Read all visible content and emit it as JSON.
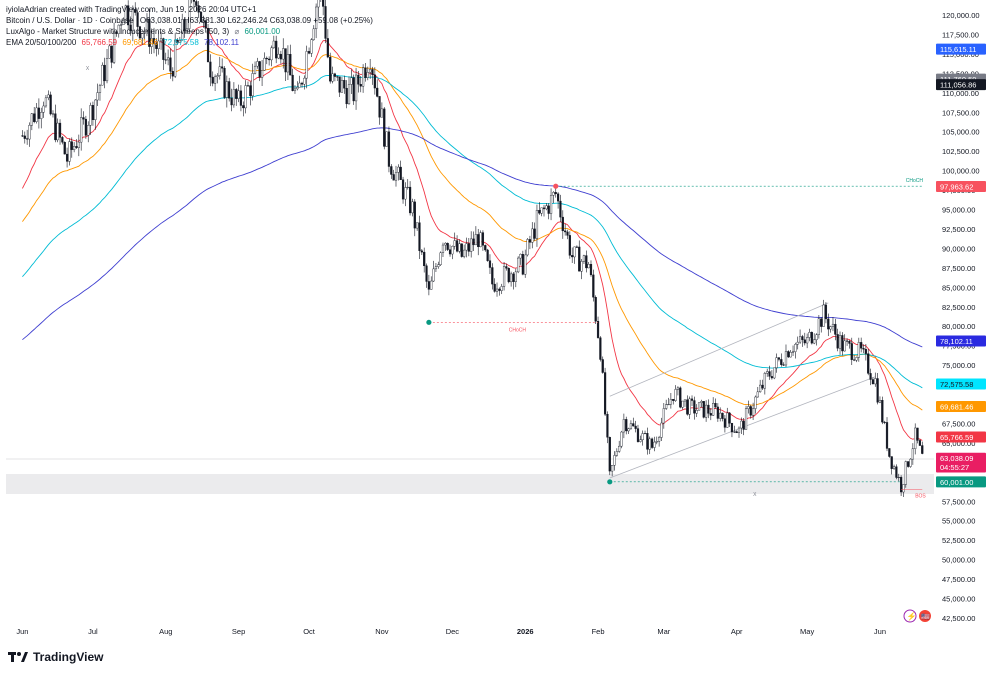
{
  "header": {
    "creator": "iyiolaAdrian created with TradingView.com, Jun 19, 2026 20:04 UTC+1",
    "symbol": "Bitcoin / U.S. Dollar · 1D · Coinbase",
    "ohlc": "O63,038.01  H63,381.30  L62,246.24  C63,038.09  +59.08 (+0.25%)",
    "indicator1": "LuxAlgo - Market Structure with Inducements & Sweeps (50, 3)",
    "indicator1_value": "60,001.00",
    "indicator2": "EMA 20/50/100/200",
    "ema_values": [
      "65,766.59",
      "69,681.46",
      "72,575.58",
      "78,102.11"
    ]
  },
  "colors": {
    "up": "#131722",
    "ema20": "#f23645",
    "ema50": "#ff9800",
    "ema100": "#00bcd4",
    "ema200": "#3f3fd0",
    "level": "#089981",
    "sweep": "#f7525f"
  },
  "footer": {
    "brand": "TradingView"
  },
  "annotations": {
    "choch1": "CHoCH",
    "choch2": "CHoCH",
    "choch_top": "CHoCH",
    "x1": "X",
    "x2": "X",
    "bos": "BOS"
  },
  "chart_data": {
    "type": "candlestick",
    "title": "Bitcoin / U.S. Dollar · 1D · Coinbase",
    "x_ticks": [
      "Jun",
      "Jul",
      "Aug",
      "Sep",
      "Oct",
      "Nov",
      "Dec",
      "2026",
      "Feb",
      "Mar",
      "Apr",
      "May",
      "Jun"
    ],
    "y_ticks": [
      "120,000.00",
      "117,500.00",
      "115,000.00",
      "112,500.00",
      "110,000.00",
      "107,500.00",
      "105,000.00",
      "102,500.00",
      "100,000.00",
      "97,500.00",
      "95,000.00",
      "92,500.00",
      "90,000.00",
      "87,500.00",
      "85,000.00",
      "82,500.00",
      "80,000.00",
      "77,500.00",
      "75,000.00",
      "72,500.00",
      "70,000.00",
      "67,500.00",
      "65,000.00",
      "62,500.00",
      "60,000.00",
      "57,500.00",
      "55,000.00",
      "52,500.00",
      "50,000.00",
      "47,500.00",
      "45,000.00",
      "42,500.00"
    ],
    "ylim": [
      42000,
      121000
    ],
    "close_path": [
      [
        "2025-06-01",
        104500
      ],
      [
        "2025-06-10",
        109500
      ],
      [
        "2025-06-20",
        101500
      ],
      [
        "2025-06-30",
        107500
      ],
      [
        "2025-07-10",
        116500
      ],
      [
        "2025-07-14",
        121000
      ],
      [
        "2025-07-25",
        117500
      ],
      [
        "2025-08-03",
        113000
      ],
      [
        "2025-08-14",
        123000
      ],
      [
        "2025-08-20",
        113500
      ],
      [
        "2025-09-01",
        108500
      ],
      [
        "2025-09-10",
        113000
      ],
      [
        "2025-09-18",
        117000
      ],
      [
        "2025-09-26",
        109000
      ],
      [
        "2025-10-06",
        124500
      ],
      [
        "2025-10-10",
        111500
      ],
      [
        "2025-10-20",
        110000
      ],
      [
        "2025-10-27",
        115000
      ],
      [
        "2025-11-04",
        101500
      ],
      [
        "2025-11-14",
        95000
      ],
      [
        "2025-11-21",
        84000
      ],
      [
        "2025-11-27",
        91500
      ],
      [
        "2025-12-05",
        89000
      ],
      [
        "2025-12-12",
        91500
      ],
      [
        "2025-12-18",
        85500
      ],
      [
        "2025-12-31",
        88000
      ],
      [
        "2026-01-06",
        93500
      ],
      [
        "2026-01-14",
        97000
      ],
      [
        "2026-01-21",
        89000
      ],
      [
        "2026-01-28",
        88000
      ],
      [
        "2026-02-02",
        77000
      ],
      [
        "2026-02-06",
        60500
      ],
      [
        "2026-02-12",
        68000
      ],
      [
        "2026-02-24",
        64500
      ],
      [
        "2026-03-05",
        71500
      ],
      [
        "2026-03-12",
        69500
      ],
      [
        "2026-03-24",
        69000
      ],
      [
        "2026-04-02",
        66500
      ],
      [
        "2026-04-14",
        73500
      ],
      [
        "2026-04-24",
        77500
      ],
      [
        "2026-05-01",
        78000
      ],
      [
        "2026-05-08",
        81500
      ],
      [
        "2026-05-16",
        77500
      ],
      [
        "2026-05-24",
        76500
      ],
      [
        "2026-05-30",
        73000
      ],
      [
        "2026-06-05",
        63500
      ],
      [
        "2026-06-10",
        59500
      ],
      [
        "2026-06-16",
        65800
      ],
      [
        "2026-06-19",
        63038
      ]
    ],
    "series": [
      {
        "name": "EMA 20",
        "value_last": 65766.59
      },
      {
        "name": "EMA 50",
        "value_last": 69681.46
      },
      {
        "name": "EMA 100",
        "value_last": 72575.58
      },
      {
        "name": "EMA 200",
        "value_last": 78102.11
      }
    ],
    "price_labels": [
      {
        "text": "115,615.11",
        "value": 115615.11,
        "color": "#2962ff"
      },
      {
        "text": "111,760.59",
        "value": 111760.59,
        "color": "#787b86"
      },
      {
        "text": "111,056.86",
        "value": 111056.86,
        "color": "#131722"
      },
      {
        "text": "97,963.62",
        "value": 97963.62,
        "color": "#f7525f"
      },
      {
        "text": "78,102.11",
        "value": 78102.11,
        "color": "#2a2ae0"
      },
      {
        "text": "72,575.58",
        "value": 72575.58,
        "color": "#00e5ff",
        "dark_text": true
      },
      {
        "text": "69,681.46",
        "value": 69681.46,
        "color": "#ff9800"
      },
      {
        "text": "65,766.59",
        "value": 65766.59,
        "color": "#f23645"
      },
      {
        "text": "63,038.09",
        "value": 63038.09,
        "color": "#e91e63"
      },
      {
        "text": "04:55:27",
        "value": 61900,
        "color": "#e91e63"
      },
      {
        "text": "60,001.00",
        "value": 60001.0,
        "color": "#089981"
      }
    ],
    "levels": {
      "choch_low": 80500,
      "choch_high": 98000,
      "swing_low": 60001
    }
  }
}
